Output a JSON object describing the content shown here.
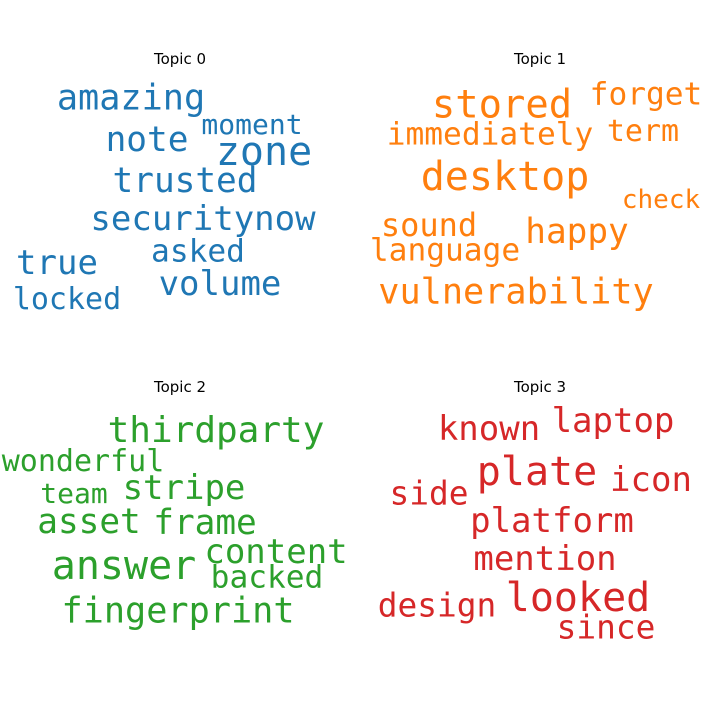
{
  "chart_data": [
    {
      "type": "wordcloud",
      "title": "Topic 0",
      "color": "#1f77b4",
      "words": [
        {
          "text": "zone",
          "weight": 1.0
        },
        {
          "text": "securitynow",
          "weight": 0.85
        },
        {
          "text": "amazing",
          "weight": 0.88
        },
        {
          "text": "note",
          "weight": 0.86
        },
        {
          "text": "trusted",
          "weight": 0.86
        },
        {
          "text": "true",
          "weight": 0.85
        },
        {
          "text": "volume",
          "weight": 0.85
        },
        {
          "text": "asked",
          "weight": 0.78
        },
        {
          "text": "locked",
          "weight": 0.75
        },
        {
          "text": "moment",
          "weight": 0.7
        }
      ]
    },
    {
      "type": "wordcloud",
      "title": "Topic 1",
      "color": "#ff7f0e",
      "words": [
        {
          "text": "desktop",
          "weight": 1.0
        },
        {
          "text": "stored",
          "weight": 0.97
        },
        {
          "text": "vulnerability",
          "weight": 0.88
        },
        {
          "text": "happy",
          "weight": 0.86
        },
        {
          "text": "immediately",
          "weight": 0.78
        },
        {
          "text": "forget",
          "weight": 0.78
        },
        {
          "text": "sound",
          "weight": 0.8
        },
        {
          "text": "language",
          "weight": 0.78
        },
        {
          "text": "term",
          "weight": 0.75
        },
        {
          "text": "check",
          "weight": 0.65
        }
      ]
    },
    {
      "type": "wordcloud",
      "title": "Topic 2",
      "color": "#2ca02c",
      "words": [
        {
          "text": "answer",
          "weight": 1.0
        },
        {
          "text": "thirdparty",
          "weight": 0.9
        },
        {
          "text": "fingerprint",
          "weight": 0.88
        },
        {
          "text": "asset",
          "weight": 0.86
        },
        {
          "text": "frame",
          "weight": 0.86
        },
        {
          "text": "stripe",
          "weight": 0.85
        },
        {
          "text": "content",
          "weight": 0.85
        },
        {
          "text": "backed",
          "weight": 0.78
        },
        {
          "text": "wonderful",
          "weight": 0.75
        },
        {
          "text": "team",
          "weight": 0.7
        }
      ]
    },
    {
      "type": "wordcloud",
      "title": "Topic 3",
      "color": "#d62728",
      "words": [
        {
          "text": "plate",
          "weight": 1.0
        },
        {
          "text": "looked",
          "weight": 1.0
        },
        {
          "text": "platform",
          "weight": 0.85
        },
        {
          "text": "mention",
          "weight": 0.85
        },
        {
          "text": "laptop",
          "weight": 0.85
        },
        {
          "text": "icon",
          "weight": 0.85
        },
        {
          "text": "known",
          "weight": 0.85
        },
        {
          "text": "since",
          "weight": 0.82
        },
        {
          "text": "design",
          "weight": 0.82
        },
        {
          "text": "side",
          "weight": 0.82
        }
      ]
    }
  ]
}
